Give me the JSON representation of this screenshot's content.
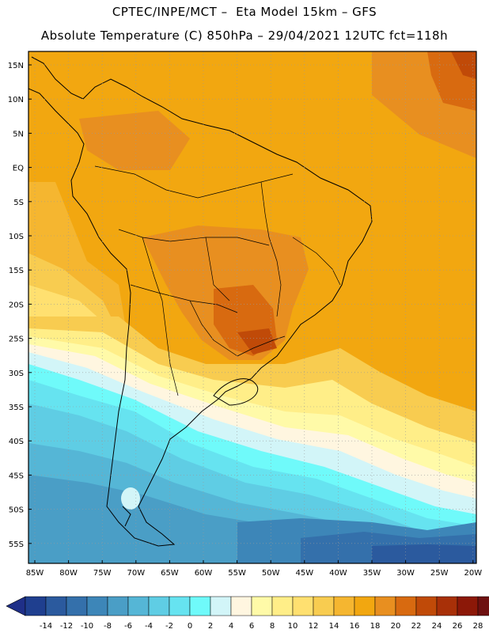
{
  "header": {
    "line1": "CPTEC/INPE/MCT –  Eta Model 15km – GFS",
    "line2": "Absolute Temperature (C) 850hPa – 29/04/2021 12UTC fct=118h"
  },
  "lat_labels": [
    "15N",
    "10N",
    "5N",
    "EQ",
    "5S",
    "10S",
    "15S",
    "20S",
    "25S",
    "30S",
    "35S",
    "40S",
    "45S",
    "50S",
    "55S"
  ],
  "lon_labels": [
    "85W",
    "80W",
    "75W",
    "70W",
    "65W",
    "60W",
    "55W",
    "50W",
    "45W",
    "40W",
    "35W",
    "30W",
    "25W",
    "20W"
  ],
  "colorbar": {
    "labels": [
      "-14",
      "-12",
      "-10",
      "-8",
      "-6",
      "-4",
      "-2",
      "0",
      "2",
      "4",
      "6",
      "8",
      "10",
      "12",
      "14",
      "16",
      "18",
      "20",
      "22",
      "24",
      "26",
      "28"
    ],
    "colors": [
      "#1f3f8f",
      "#2b5a9e",
      "#3470ab",
      "#3d86b8",
      "#4a9ec6",
      "#55b6d6",
      "#5fcde4",
      "#66e3f0",
      "#6ffafa",
      "#d2f5f8",
      "#fff6e0",
      "#fffaa8",
      "#ffee88",
      "#ffe070",
      "#f8cc50",
      "#f5b630",
      "#f2a710",
      "#e88f20",
      "#d86a10",
      "#c04a08",
      "#a83008",
      "#8c1808",
      "#6e1010"
    ],
    "under_color": "#1f2f88",
    "over_color": "#6a0c18"
  }
}
